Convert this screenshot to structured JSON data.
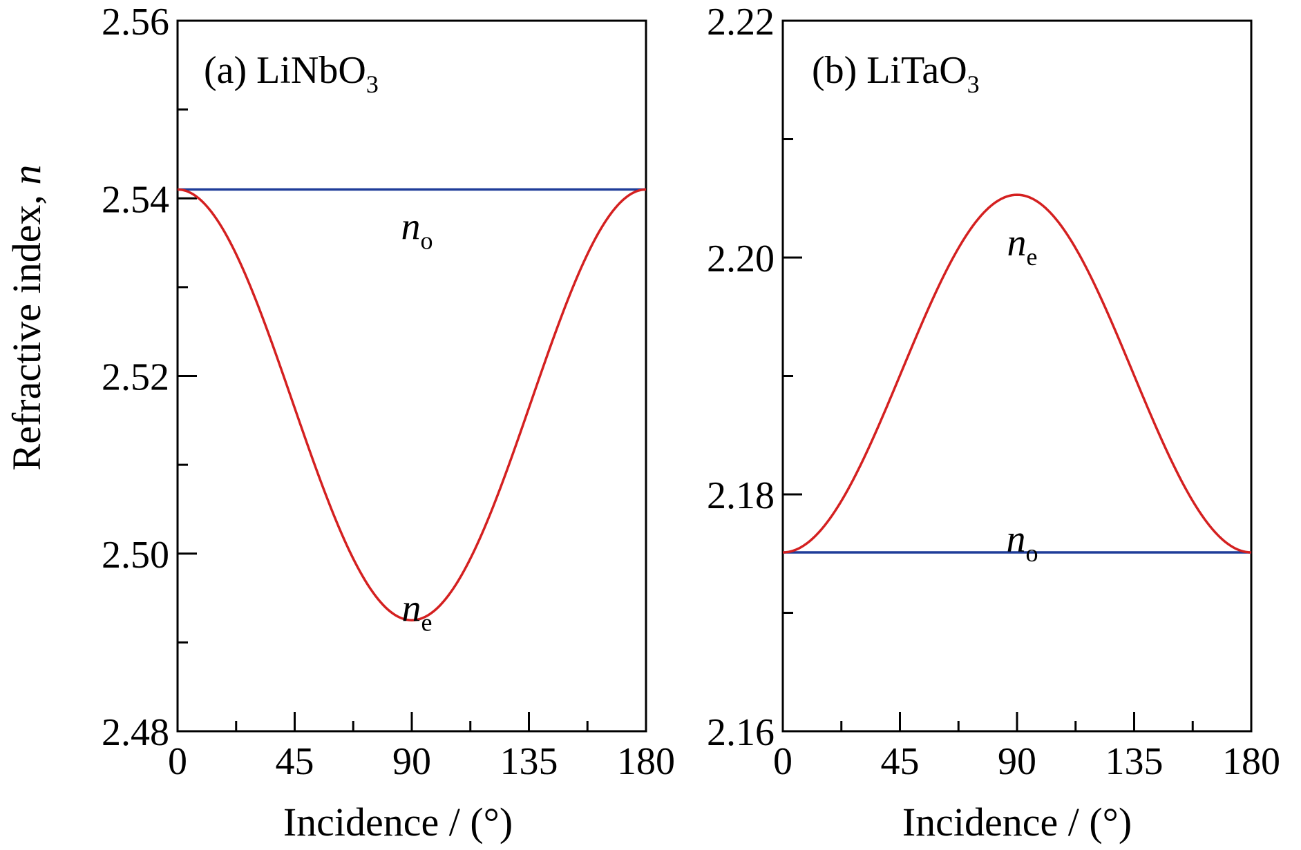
{
  "figure": {
    "ylabel": "Refractive index, n",
    "ylabel_main": "Refractive index, ",
    "ylabel_var": "n"
  },
  "chart_data": [
    {
      "type": "line",
      "panel_label": "(a) LiNbO",
      "panel_label_sub": "3",
      "xlabel": "Incidence / (°)",
      "xlim": [
        0,
        180
      ],
      "ylim": [
        2.48,
        2.56
      ],
      "x_ticks": [
        0,
        45,
        90,
        135,
        180
      ],
      "x_tick_labels": [
        "0",
        "45",
        "90",
        "135",
        "180"
      ],
      "x_minor_step": 22.5,
      "y_ticks": [
        2.48,
        2.5,
        2.52,
        2.54,
        2.56
      ],
      "y_tick_labels": [
        "2.48",
        "2.50",
        "2.52",
        "2.54",
        "2.56"
      ],
      "y_minor_step": 0.01,
      "grid": false,
      "series": [
        {
          "name": "n_o",
          "base": "n",
          "sub": "o",
          "color": "#1f3d99",
          "kind": "constant",
          "value": 2.541,
          "label_at": [
            92,
            2.5385
          ]
        },
        {
          "name": "n_e",
          "base": "n",
          "sub": "e",
          "color": "#d42020",
          "kind": "ellipse",
          "n_o": 2.541,
          "n_e": 2.4925,
          "label_at": [
            92,
            2.4955
          ]
        }
      ]
    },
    {
      "type": "line",
      "panel_label": "(b) LiTaO",
      "panel_label_sub": "3",
      "xlabel": "Incidence / (°)",
      "xlim": [
        0,
        180
      ],
      "ylim": [
        2.16,
        2.22
      ],
      "x_ticks": [
        0,
        45,
        90,
        135,
        180
      ],
      "x_tick_labels": [
        "0",
        "45",
        "90",
        "135",
        "180"
      ],
      "x_minor_step": 22.5,
      "y_ticks": [
        2.16,
        2.18,
        2.2,
        2.22
      ],
      "y_tick_labels": [
        "2.16",
        "2.18",
        "2.20",
        "2.22"
      ],
      "y_minor_step": 0.01,
      "grid": false,
      "series": [
        {
          "name": "n_o",
          "base": "n",
          "sub": "o",
          "color": "#1f3d99",
          "kind": "constant",
          "value": 2.1751,
          "label_at": [
            92,
            2.1775
          ]
        },
        {
          "name": "n_e",
          "base": "n",
          "sub": "e",
          "color": "#d42020",
          "kind": "ellipse",
          "n_o": 2.1751,
          "n_e": 2.2053,
          "label_at": [
            92,
            2.2025
          ]
        }
      ]
    }
  ]
}
